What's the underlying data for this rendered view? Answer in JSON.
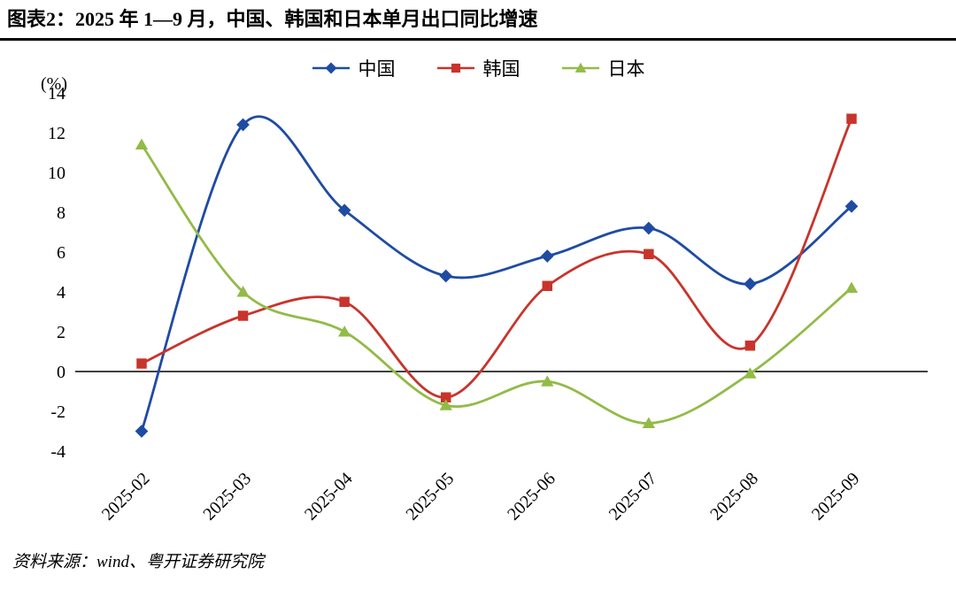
{
  "figure": {
    "source": "资料来源：wind、粤开证券研究院"
  },
  "chart_data": {
    "type": "line",
    "title": "图表2：2025 年 1—9 月，中国、韩国和日本单月出口同比增速",
    "unit_label": "(%)",
    "xlabel": "",
    "ylabel": "(%)",
    "categories": [
      "2025-02",
      "2025-03",
      "2025-04",
      "2025-05",
      "2025-06",
      "2025-07",
      "2025-08",
      "2025-09"
    ],
    "series": [
      {
        "name": "中国",
        "marker": "diamond",
        "color": "#1F4BA3",
        "values": [
          -3.0,
          12.4,
          8.1,
          4.8,
          5.8,
          7.2,
          4.4,
          8.3
        ]
      },
      {
        "name": "韩国",
        "marker": "square",
        "color": "#C8342B",
        "values": [
          0.4,
          2.8,
          3.5,
          -1.3,
          4.3,
          5.9,
          1.3,
          12.7
        ]
      },
      {
        "name": "日本",
        "marker": "triangle",
        "color": "#92BB47",
        "values": [
          11.4,
          4.0,
          2.0,
          -1.7,
          -0.5,
          -2.6,
          -0.1,
          4.2
        ]
      }
    ],
    "ylim": [
      -4,
      14
    ],
    "ytick_step": 2,
    "legend_position": "top",
    "grid": false,
    "smooth": true
  }
}
